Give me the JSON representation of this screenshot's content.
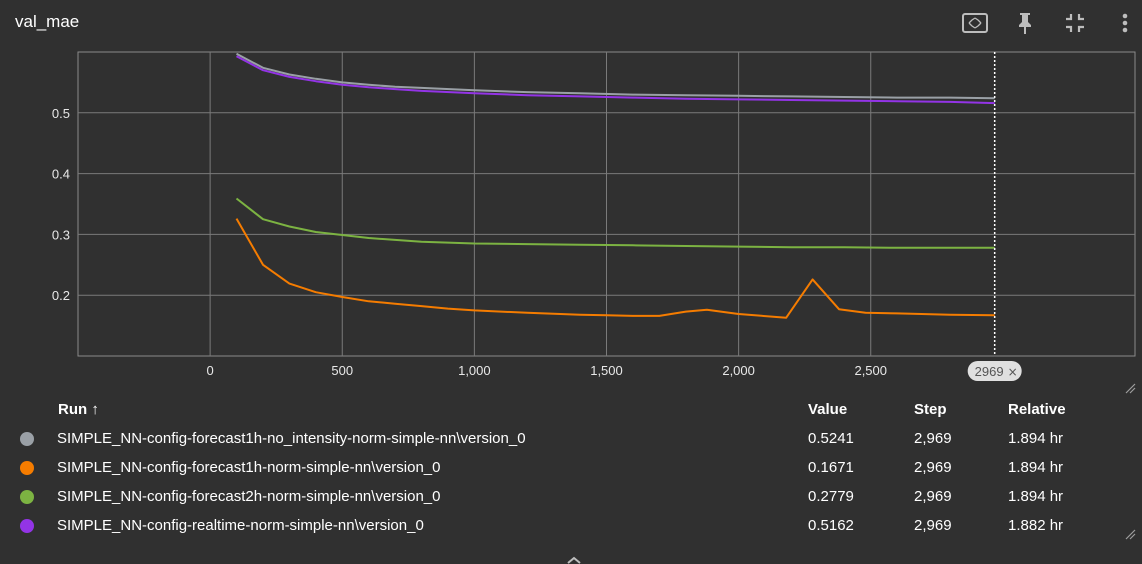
{
  "card": {
    "title": "val_mae",
    "icons": [
      "fit-domain-icon",
      "pin-icon",
      "collapse-icon",
      "more-vert-icon"
    ]
  },
  "chart_data": {
    "type": "line",
    "title": "",
    "xlabel": "",
    "ylabel": "",
    "xlim": [
      -500,
      3500
    ],
    "ylim": [
      0.1,
      0.6
    ],
    "x_ticks": [
      "0",
      "500",
      "1,000",
      "1,500",
      "2,000",
      "2,500"
    ],
    "y_ticks": [
      "0.2",
      "0.3",
      "0.4",
      "0.5"
    ],
    "grid": true,
    "hover_step": "2969",
    "series": [
      {
        "name": "SIMPLE_NN-config-forecast1h-no_intensity-norm-simple-nn\\version_0",
        "color": "#9aa0a6",
        "x": [
          100,
          200,
          300,
          400,
          500,
          600,
          700,
          800,
          1000,
          1200,
          1400,
          1600,
          1800,
          2000,
          2200,
          2400,
          2600,
          2800,
          2969
        ],
        "y": [
          0.597,
          0.574,
          0.563,
          0.556,
          0.55,
          0.546,
          0.543,
          0.541,
          0.537,
          0.534,
          0.532,
          0.53,
          0.529,
          0.528,
          0.527,
          0.526,
          0.525,
          0.525,
          0.524
        ]
      },
      {
        "name": "SIMPLE_NN-config-forecast1h-norm-simple-nn\\version_0",
        "color": "#f57c00",
        "x": [
          100,
          200,
          300,
          400,
          500,
          600,
          700,
          800,
          900,
          1000,
          1200,
          1400,
          1500,
          1600,
          1700,
          1800,
          1880,
          2000,
          2180,
          2280,
          2380,
          2480,
          2600,
          2800,
          2969
        ],
        "y": [
          0.326,
          0.25,
          0.219,
          0.205,
          0.197,
          0.19,
          0.186,
          0.182,
          0.178,
          0.175,
          0.171,
          0.168,
          0.167,
          0.166,
          0.166,
          0.173,
          0.176,
          0.169,
          0.163,
          0.226,
          0.177,
          0.171,
          0.17,
          0.168,
          0.167
        ]
      },
      {
        "name": "SIMPLE_NN-config-forecast2h-norm-simple-nn\\version_0",
        "color": "#7cb342",
        "x": [
          100,
          200,
          300,
          400,
          500,
          600,
          700,
          800,
          1000,
          1200,
          1400,
          1600,
          1800,
          2000,
          2200,
          2400,
          2600,
          2800,
          2969
        ],
        "y": [
          0.359,
          0.325,
          0.313,
          0.304,
          0.299,
          0.294,
          0.291,
          0.288,
          0.285,
          0.284,
          0.283,
          0.282,
          0.281,
          0.28,
          0.279,
          0.279,
          0.278,
          0.278,
          0.278
        ]
      },
      {
        "name": "SIMPLE_NN-config-realtime-norm-simple-nn\\version_0",
        "color": "#9334e6",
        "x": [
          100,
          200,
          300,
          400,
          500,
          600,
          700,
          800,
          1000,
          1200,
          1400,
          1600,
          1800,
          2000,
          2200,
          2400,
          2600,
          2800,
          2969
        ],
        "y": [
          0.593,
          0.57,
          0.559,
          0.552,
          0.546,
          0.542,
          0.539,
          0.536,
          0.532,
          0.529,
          0.527,
          0.525,
          0.523,
          0.522,
          0.521,
          0.52,
          0.519,
          0.518,
          0.516
        ]
      }
    ]
  },
  "table": {
    "headers": {
      "run": "Run ↑",
      "value": "Value",
      "step": "Step",
      "relative": "Relative"
    },
    "rows": [
      {
        "run": "SIMPLE_NN-config-forecast1h-no_intensity-norm-simple-nn\\version_0",
        "value": "0.5241",
        "step": "2,969",
        "relative": "1.894 hr",
        "color": "#9aa0a6"
      },
      {
        "run": "SIMPLE_NN-config-forecast1h-norm-simple-nn\\version_0",
        "value": "0.1671",
        "step": "2,969",
        "relative": "1.894 hr",
        "color": "#f57c00"
      },
      {
        "run": "SIMPLE_NN-config-forecast2h-norm-simple-nn\\version_0",
        "value": "0.2779",
        "step": "2,969",
        "relative": "1.894 hr",
        "color": "#7cb342"
      },
      {
        "run": "SIMPLE_NN-config-realtime-norm-simple-nn\\version_0",
        "value": "0.5162",
        "step": "2,969",
        "relative": "1.882 hr",
        "color": "#9334e6"
      }
    ]
  }
}
